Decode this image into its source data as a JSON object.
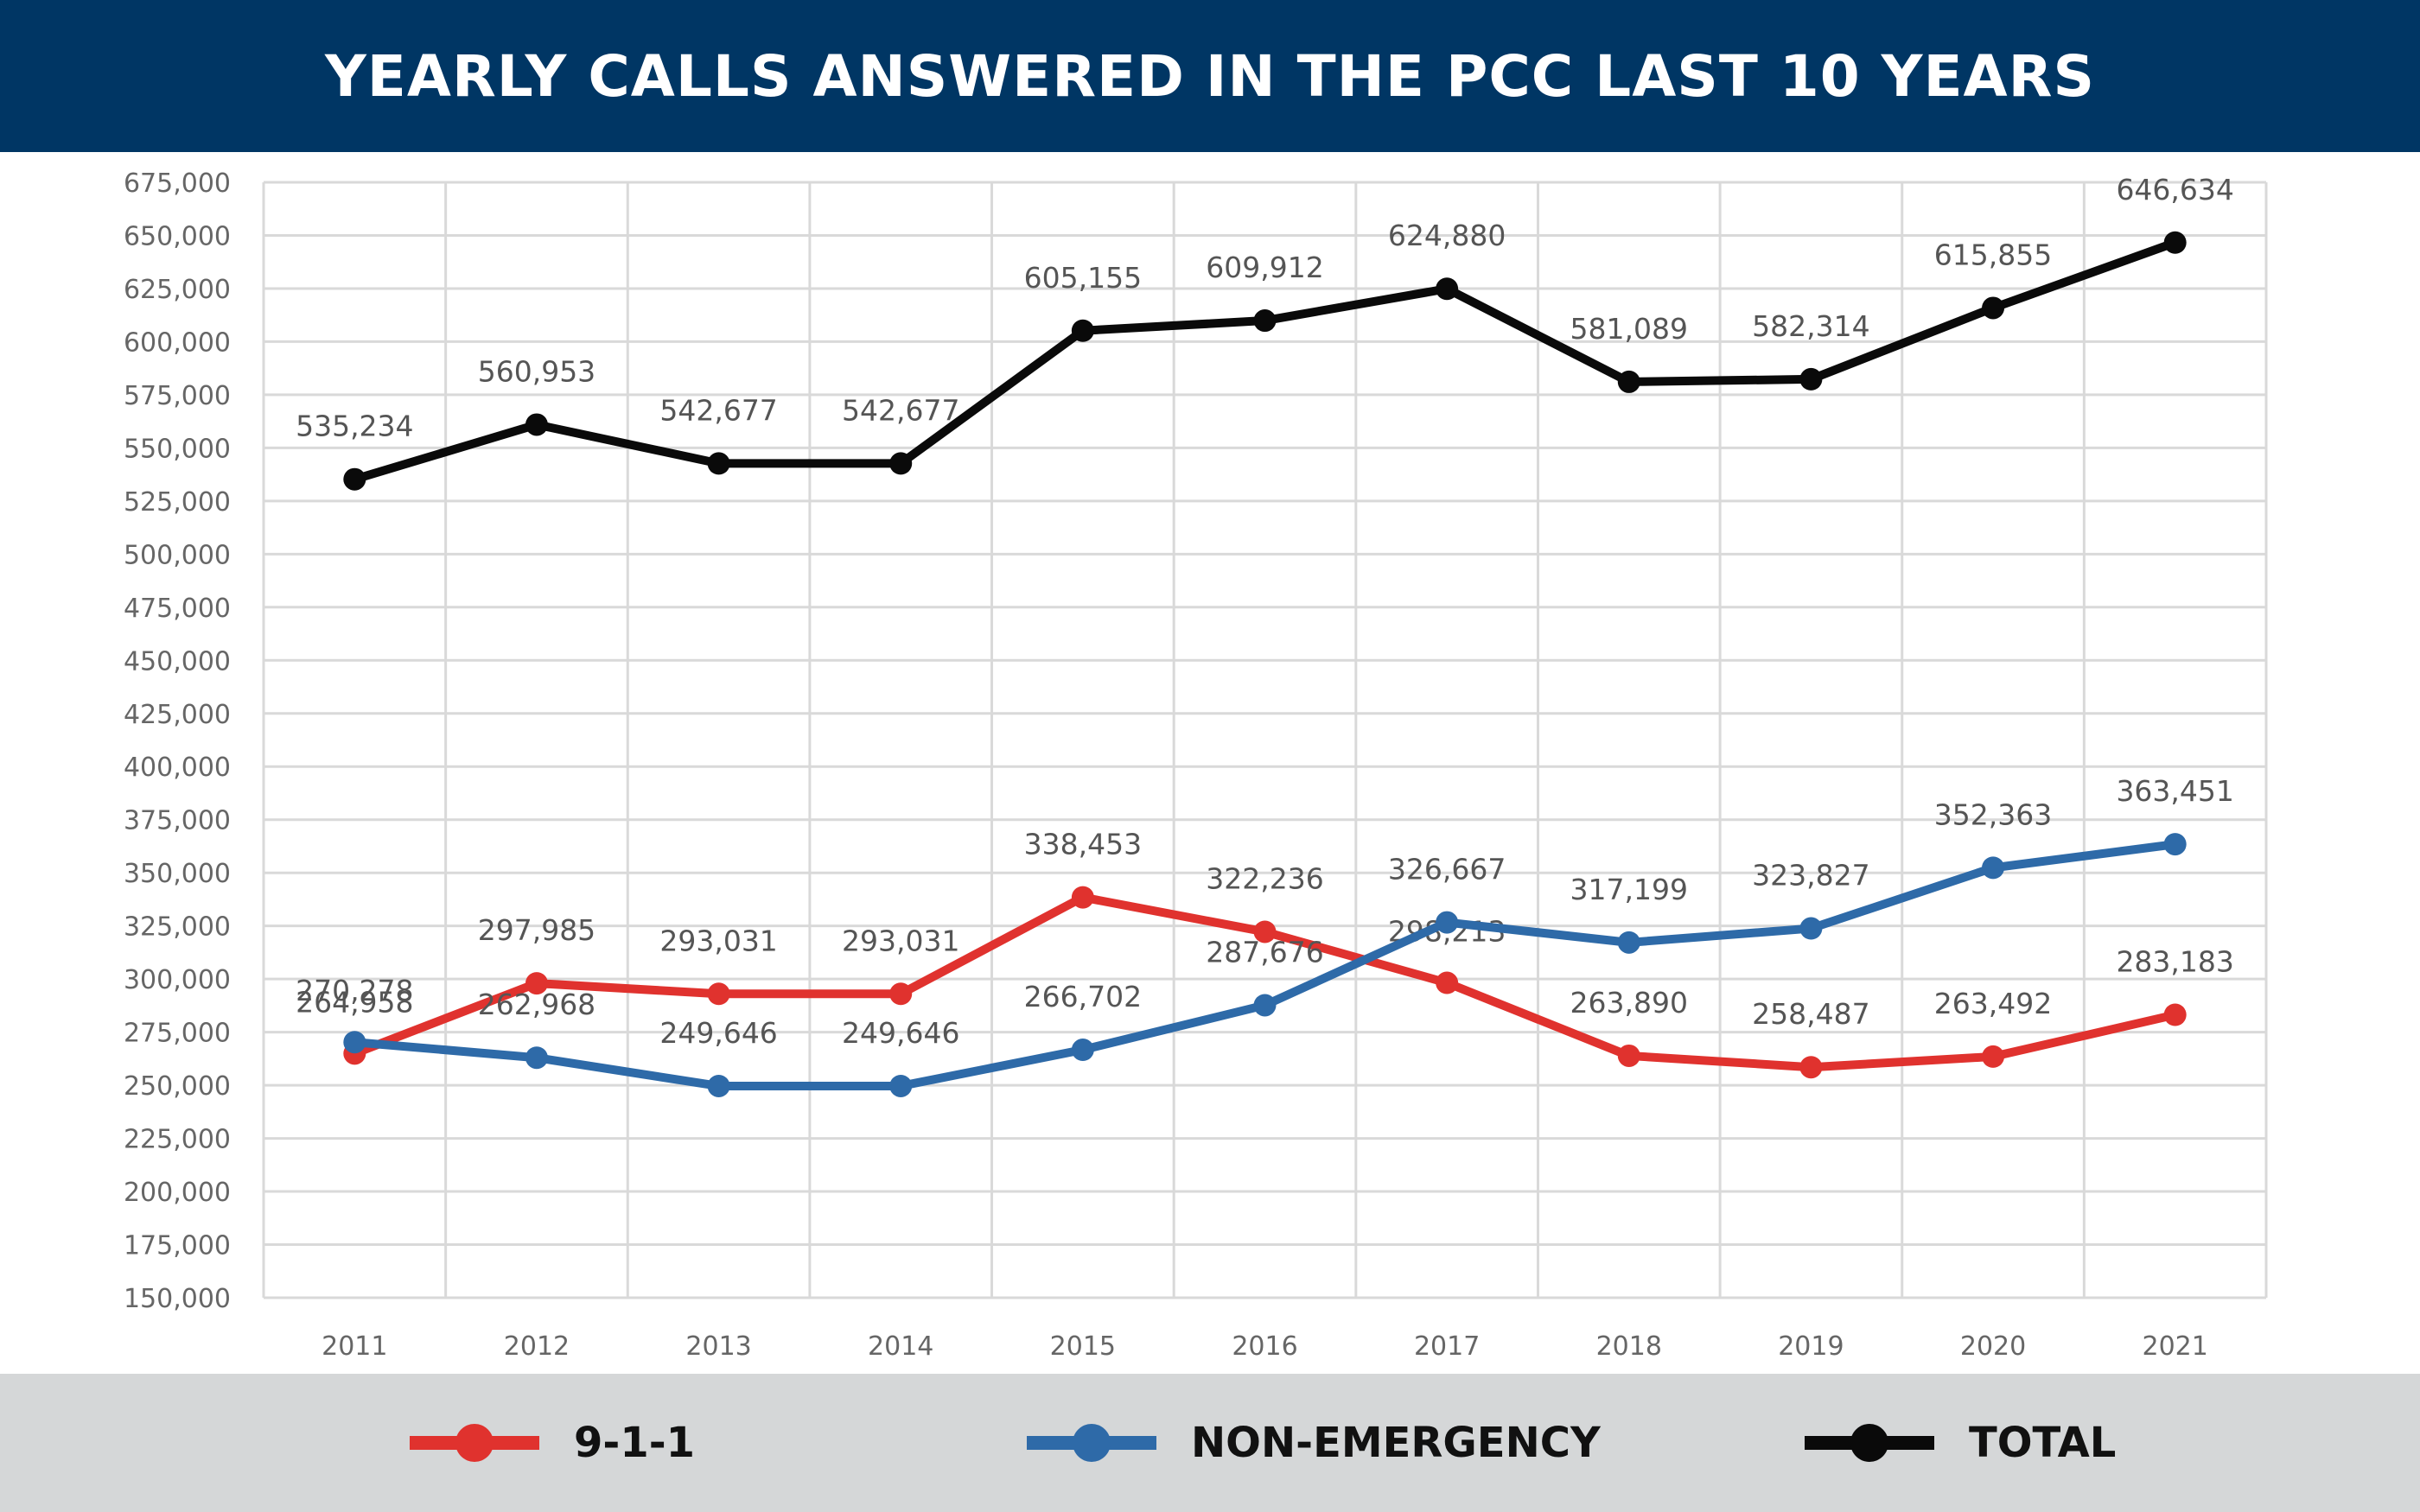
{
  "header": {
    "title": "YEARLY CALLS ANSWERED IN THE PCC LAST 10 YEARS"
  },
  "legend": [
    {
      "label": "9-1-1",
      "color": "#e0322e"
    },
    {
      "label": "NON-EMERGENCY",
      "color": "#2e6aa8"
    },
    {
      "label": "TOTAL",
      "color": "#0a0a0a"
    }
  ],
  "chart_data": {
    "type": "line",
    "title": "YEARLY CALLS ANSWERED IN THE PCC LAST 10 YEARS",
    "xlabel": "",
    "ylabel": "",
    "categories": [
      "2011",
      "2012",
      "2013",
      "2014",
      "2015",
      "2016",
      "2017",
      "2018",
      "2019",
      "2020",
      "2021"
    ],
    "ylim": [
      150000,
      675000
    ],
    "ytick_step": 25000,
    "ytick_labels": [
      "150,000",
      "175,000",
      "200,000",
      "225,000",
      "250,000",
      "275,000",
      "300,000",
      "325,000",
      "350,000",
      "375,000",
      "400,000",
      "425,000",
      "450,000",
      "475,000",
      "500,000",
      "525,000",
      "550,000",
      "575,000",
      "600,000",
      "625,000",
      "650,000",
      "675,000"
    ],
    "grid": true,
    "legend_position": "bottom",
    "series": [
      {
        "name": "9-1-1",
        "color": "#e0322e",
        "values": [
          264958,
          297985,
          293031,
          293031,
          338453,
          322236,
          298213,
          263890,
          258487,
          263492,
          283183
        ],
        "labels": [
          "264,958",
          "297,985",
          "293,031",
          "293,031",
          "338,453",
          "322,236",
          "298,213",
          "263,890",
          "258,487",
          "263,492",
          "283,183"
        ]
      },
      {
        "name": "NON-EMERGENCY",
        "color": "#2e6aa8",
        "values": [
          270278,
          262968,
          249646,
          249646,
          266702,
          287676,
          326667,
          317199,
          323827,
          352363,
          363451
        ],
        "labels": [
          "270,278",
          "262,968",
          "249,646",
          "249,646",
          "266,702",
          "287,676",
          "326,667",
          "317,199",
          "323,827",
          "352,363",
          "363,451"
        ]
      },
      {
        "name": "TOTAL",
        "color": "#0a0a0a",
        "values": [
          535234,
          560953,
          542677,
          542677,
          605155,
          609912,
          624880,
          581089,
          582314,
          615855,
          646634
        ],
        "labels": [
          "535,234",
          "560,953",
          "542,677",
          "542,677",
          "605,155",
          "609,912",
          "624,880",
          "581,089",
          "582,314",
          "615,855",
          "646,634"
        ]
      }
    ]
  }
}
